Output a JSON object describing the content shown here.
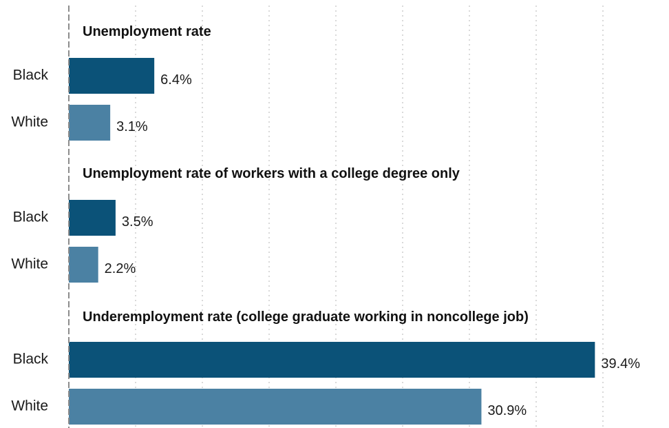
{
  "chart_data": {
    "type": "bar",
    "orientation": "horizontal",
    "grid": true,
    "xlim": [
      0,
      40
    ],
    "colors": {
      "Black": "#0b5278",
      "White": "#4b81a3"
    },
    "groups": [
      {
        "title": "Unemployment rate",
        "bars": [
          {
            "category": "Black",
            "value": 6.4,
            "label": "6.4%"
          },
          {
            "category": "White",
            "value": 3.1,
            "label": "3.1%"
          }
        ]
      },
      {
        "title": "Unemployment rate of workers with a college degree only",
        "bars": [
          {
            "category": "Black",
            "value": 3.5,
            "label": "3.5%"
          },
          {
            "category": "White",
            "value": 2.2,
            "label": "2.2%"
          }
        ]
      },
      {
        "title": "Underemployment rate (college graduate working in noncollege job)",
        "bars": [
          {
            "category": "Black",
            "value": 39.4,
            "label": "39.4%"
          },
          {
            "category": "White",
            "value": 30.9,
            "label": "30.9%"
          }
        ]
      }
    ]
  }
}
